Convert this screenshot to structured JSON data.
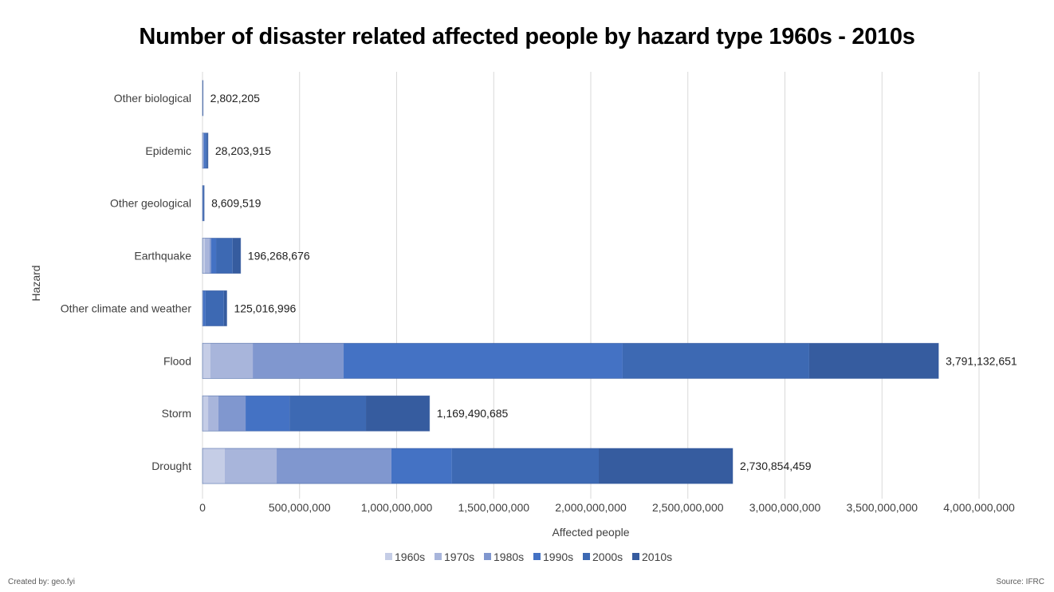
{
  "chart_data": {
    "type": "bar",
    "orientation": "horizontal",
    "stacked": true,
    "title": "Number of disaster related affected people by hazard type 1960s - 2010s",
    "xlabel": "Affected people",
    "ylabel": "Hazard",
    "xlim": [
      0,
      4000000000
    ],
    "xticks": [
      0,
      500000000,
      1000000000,
      1500000000,
      2000000000,
      2500000000,
      3000000000,
      3500000000,
      4000000000
    ],
    "xtick_labels": [
      "0",
      "500,000,000",
      "1,000,000,000",
      "1,500,000,000",
      "2,000,000,000",
      "2,500,000,000",
      "3,000,000,000",
      "3,500,000,000",
      "4,000,000,000"
    ],
    "grid": "vertical",
    "legend_position": "bottom",
    "categories": [
      "Other biological",
      "Epidemic",
      "Other geological",
      "Earthquake",
      "Other climate and weather",
      "Flood",
      "Storm",
      "Drought"
    ],
    "totals": [
      2802205,
      28203915,
      8609519,
      196268676,
      125016996,
      3791132651,
      1169490685,
      2730854459
    ],
    "total_labels": [
      "2,802,205",
      "28,203,915",
      "8,609,519",
      "196,268,676",
      "125,016,996",
      "3,791,132,651",
      "1,169,490,685",
      "2,730,854,459"
    ],
    "series": [
      {
        "name": "1960s",
        "color": "#C5CDE6",
        "values": [
          100000,
          1500000,
          300000,
          12000000,
          500000,
          41000000,
          29000000,
          115000000
        ]
      },
      {
        "name": "1970s",
        "color": "#A8B5DB",
        "values": [
          200000,
          2000000,
          500000,
          25000000,
          500000,
          218000000,
          53000000,
          267000000
        ]
      },
      {
        "name": "1980s",
        "color": "#8097CF",
        "values": [
          300000,
          3500000,
          800000,
          8000000,
          2000000,
          468000000,
          140000000,
          591000000
        ]
      },
      {
        "name": "1990s",
        "color": "#4472C4",
        "values": [
          700000,
          8000000,
          2500000,
          25000000,
          12000000,
          1437000000,
          226000000,
          312000000
        ]
      },
      {
        "name": "2000s",
        "color": "#3D69B3",
        "values": [
          900000,
          9000000,
          3000000,
          85000000,
          95000000,
          961000000,
          394000000,
          756000000
        ]
      },
      {
        "name": "2010s",
        "color": "#365C9F",
        "values": [
          600000,
          4200000,
          1500000,
          41000000,
          15000000,
          666000000,
          327000000,
          690000000
        ]
      }
    ]
  },
  "footer": {
    "credit": "Created by: geo.fyi",
    "source": "Source: IFRC"
  }
}
